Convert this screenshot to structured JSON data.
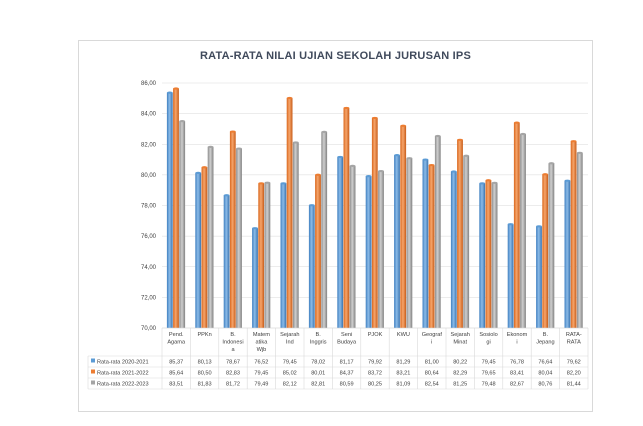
{
  "chart_data": {
    "type": "bar",
    "title": "RATA-RATA NILAI UJIAN  SEKOLAH JURUSAN IPS",
    "ylim": [
      70,
      86
    ],
    "yticks": [
      "70,00",
      "72,00",
      "74,00",
      "76,00",
      "78,00",
      "80,00",
      "82,00",
      "84,00",
      "86,00"
    ],
    "grid": true,
    "legend": "data-table-left",
    "categories": [
      [
        "Pend.",
        "Agama"
      ],
      [
        "PPKn"
      ],
      [
        "B.",
        "Indonesi",
        "a"
      ],
      [
        "Matem",
        "atika",
        "Wjb"
      ],
      [
        "Sejarah",
        "Ind"
      ],
      [
        "B.",
        "Inggris"
      ],
      [
        "Seni",
        "Budaya"
      ],
      [
        "PJOK"
      ],
      [
        "KWU"
      ],
      [
        "Geograf",
        "i"
      ],
      [
        "Sejarah",
        "Minat"
      ],
      [
        "Sosiolo",
        "gi"
      ],
      [
        "Ekonom",
        "i"
      ],
      [
        "B.",
        "Jepang"
      ],
      [
        "RATA-",
        "RATA"
      ]
    ],
    "series": [
      {
        "name": "Rata-rata 2020-2021",
        "color": "#5b9bd5",
        "values": [
          85.37,
          80.13,
          78.67,
          76.52,
          79.45,
          78.02,
          81.17,
          79.92,
          81.29,
          81.0,
          80.22,
          79.45,
          76.78,
          76.64,
          79.62
        ],
        "labels": [
          "85,37",
          "80,13",
          "78,67",
          "76,52",
          "79,45",
          "78,02",
          "81,17",
          "79,92",
          "81,29",
          "81,00",
          "80,22",
          "79,45",
          "76,78",
          "76,64",
          "79,62"
        ]
      },
      {
        "name": "Rata-rata 2021-2022",
        "color": "#ed7d31",
        "values": [
          85.64,
          80.5,
          82.83,
          79.45,
          85.02,
          80.01,
          84.37,
          83.72,
          83.21,
          80.64,
          82.29,
          79.65,
          83.41,
          80.04,
          82.2
        ],
        "labels": [
          "85,64",
          "80,50",
          "82,83",
          "79,45",
          "85,02",
          "80,01",
          "84,37",
          "83,72",
          "83,21",
          "80,64",
          "82,29",
          "79,65",
          "83,41",
          "80,04",
          "82,20"
        ]
      },
      {
        "name": "Rata-rata 2022-2023",
        "color": "#a5a5a5",
        "values": [
          83.51,
          81.83,
          81.72,
          79.49,
          82.12,
          82.81,
          80.59,
          80.25,
          81.09,
          82.54,
          81.25,
          79.48,
          82.67,
          80.76,
          81.44
        ],
        "labels": [
          "83,51",
          "81,83",
          "81,72",
          "79,49",
          "82,12",
          "82,81",
          "80,59",
          "80,25",
          "81,09",
          "82,54",
          "81,25",
          "79,48",
          "82,67",
          "80,76",
          "81,44"
        ]
      }
    ]
  }
}
